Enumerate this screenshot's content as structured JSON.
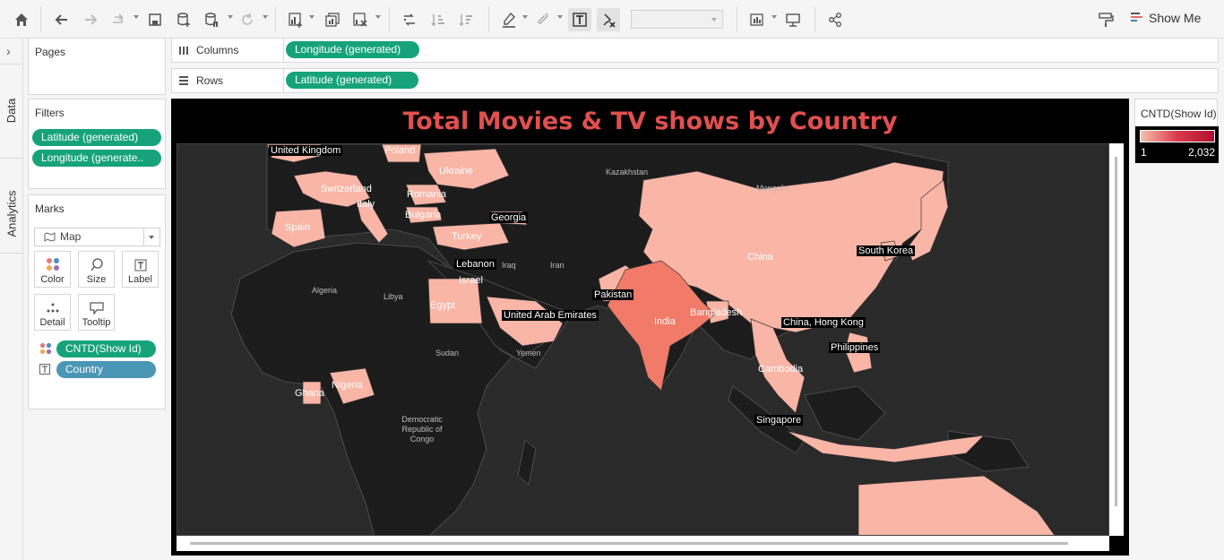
{
  "toolbar": {
    "show_me_label": "Show Me",
    "format_dropdown_value": "",
    "icons": [
      "home-icon",
      "undo-icon",
      "redo-icon",
      "replay-icon",
      "save-icon",
      "new-datasource-icon",
      "pause-updates-icon",
      "refresh-icon",
      "new-worksheet-icon",
      "duplicate-sheet-icon",
      "clear-sheet-icon",
      "swap-icon",
      "sort-ascending-icon",
      "sort-descending-icon",
      "highlight-icon",
      "group-icon",
      "show-labels-icon",
      "fix-axes-icon",
      "fit-icon",
      "presentation-icon",
      "share-icon",
      "format-painter-icon"
    ]
  },
  "side_tabs": {
    "data_label": "Data",
    "analytics_label": "Analytics"
  },
  "pages": {
    "title": "Pages"
  },
  "filters": {
    "title": "Filters",
    "items": [
      "Latitude (generated)",
      "Longitude (generate.."
    ]
  },
  "marks": {
    "title": "Marks",
    "type": "Map",
    "buttons": [
      "Color",
      "Size",
      "Label",
      "Detail",
      "Tooltip"
    ],
    "fields": [
      {
        "icon": "color-dots-icon",
        "label": "CNTD(Show Id)"
      },
      {
        "icon": "text-label-icon",
        "label": "Country"
      }
    ]
  },
  "shelves": {
    "columns_label": "Columns",
    "columns_pill": "Longitude (generated)",
    "rows_label": "Rows",
    "rows_pill": "Latitude (generated)"
  },
  "viz": {
    "title": "Total Movies & TV shows by Country",
    "labels": {
      "united_kingdom": "United Kingdom",
      "poland": "Poland",
      "ukraine": "Ukraine",
      "kazakhstan": "Kazakhstan",
      "mongolia": "Mongolia",
      "switzerland": "Switzerland",
      "romania": "Romania",
      "italy": "Italy",
      "bulgaria": "Bulgaria",
      "georgia": "Georgia",
      "spain": "Spain",
      "turkey": "Turkey",
      "china": "China",
      "south_korea": "South Korea",
      "lebanon": "Lebanon",
      "iraq": "Iraq",
      "iran": "Iran",
      "israel": "Israel",
      "algeria": "Algeria",
      "libya": "Libya",
      "egypt": "Egypt",
      "pakistan": "Pakistan",
      "uae": "United Arab Emirates",
      "india": "India",
      "bangladesh": "Bangladesh",
      "hong_kong": "China, Hong Kong",
      "philippines": "Philippines",
      "sudan": "Sudan",
      "yemen": "Yemen",
      "cambodia": "Cambodia",
      "nigeria": "Nigeria",
      "ghana": "Ghana",
      "drc": "Democratic Republic of Congo",
      "singapore": "Singapore"
    }
  },
  "legend": {
    "title": "CNTD(Show Id)",
    "min": "1",
    "max": "2,032",
    "colors": {
      "low": "#f8c0b0",
      "mid": "#d83a4a",
      "high": "#b0102f"
    }
  }
}
